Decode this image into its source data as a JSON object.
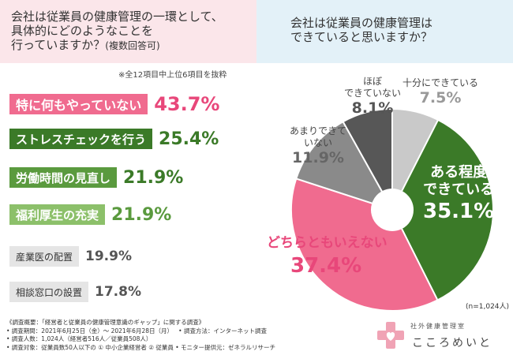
{
  "question_left": {
    "line1": "会社は従業員の健康管理の一環として、",
    "line2": "具体的にどのようなことを",
    "line3": "行っていますか？",
    "line3_small": "(複数回答可)"
  },
  "question_right": {
    "line1": "会社は従業員の健康管理は",
    "line2": "できていると思いますか？"
  },
  "note": "※全12項目中上位6項目を抜粋",
  "chart_data": [
    {
      "type": "bar",
      "orientation": "horizontal",
      "categories": [
        "特に何もやっていない",
        "ストレスチェックを行う",
        "労働時間の見直し",
        "福利厚生の充実",
        "産業医の配置",
        "相談窓口の設置"
      ],
      "values": [
        43.7,
        25.4,
        21.9,
        21.9,
        19.9,
        17.8
      ],
      "value_labels": [
        "43.7%",
        "25.4%",
        "21.9%",
        "21.9%",
        "19.9%",
        "17.8%"
      ],
      "colors": [
        "#f06b8f",
        "#3b7a28",
        "#5a9a3e",
        "#8cc06a",
        "#e5e5e5",
        "#e5e5e5"
      ],
      "label_colors": [
        "#ffffff",
        "#ffffff",
        "#ffffff",
        "#ffffff",
        "#333333",
        "#333333"
      ],
      "pct_colors": [
        "#e8477a",
        "#3b7a28",
        "#3b7a28",
        "#5a9a3e",
        "#555555",
        "#555555"
      ]
    },
    {
      "type": "pie",
      "categories": [
        "十分にできている",
        "ある程度できている",
        "どちらともいえない",
        "あまりできていない",
        "ほぼできていない"
      ],
      "values": [
        7.5,
        35.1,
        37.4,
        11.9,
        8.1
      ],
      "value_labels": [
        "7.5%",
        "35.1%",
        "37.4%",
        "11.9%",
        "8.1%"
      ],
      "colors": [
        "#c9c9c9",
        "#3b7a28",
        "#f06b8f",
        "#8a8a8a",
        "#575757"
      ],
      "donut": true,
      "n_label": "(n=1,024人)"
    }
  ],
  "pie_labels": {
    "full": {
      "name": "十分にできている",
      "pct": "7.5%"
    },
    "some": {
      "name1": "ある程度",
      "name2": "できている",
      "pct": "35.1%"
    },
    "neither": {
      "name": "どちらともいえない",
      "pct": "37.4%"
    },
    "notmuch": {
      "name1": "あまりできて",
      "name2": "いない",
      "pct": "11.9%"
    },
    "hardly": {
      "name1": "ほぼ",
      "name2": "できていない",
      "pct": "8.1%"
    }
  },
  "survey": {
    "l1": "《調査概要：「経営者と従業員の健康管理意識のギャップ」に関する調査》",
    "l2a": "• 調査期間：2021年6月25日（金）〜 2021年6月28日（月）",
    "l2b": "• 調査方法：インターネット調査",
    "l3": "• 調査人数：1,024人（経営者516人／従業員508人）",
    "l4": "• 調査対象：従業員数50人以下の ① 中小企業経営者 ② 従業員 • モニター提供元：ゼネラルリサーチ"
  },
  "logo": {
    "sub": "社外健康管理室",
    "main": "こころめいと"
  },
  "colors": {
    "pink": "#f06b8f",
    "dark_green": "#3b7a28",
    "light_pink_bg": "#fbe6ea",
    "light_blue_bg": "#e3f1f8"
  }
}
